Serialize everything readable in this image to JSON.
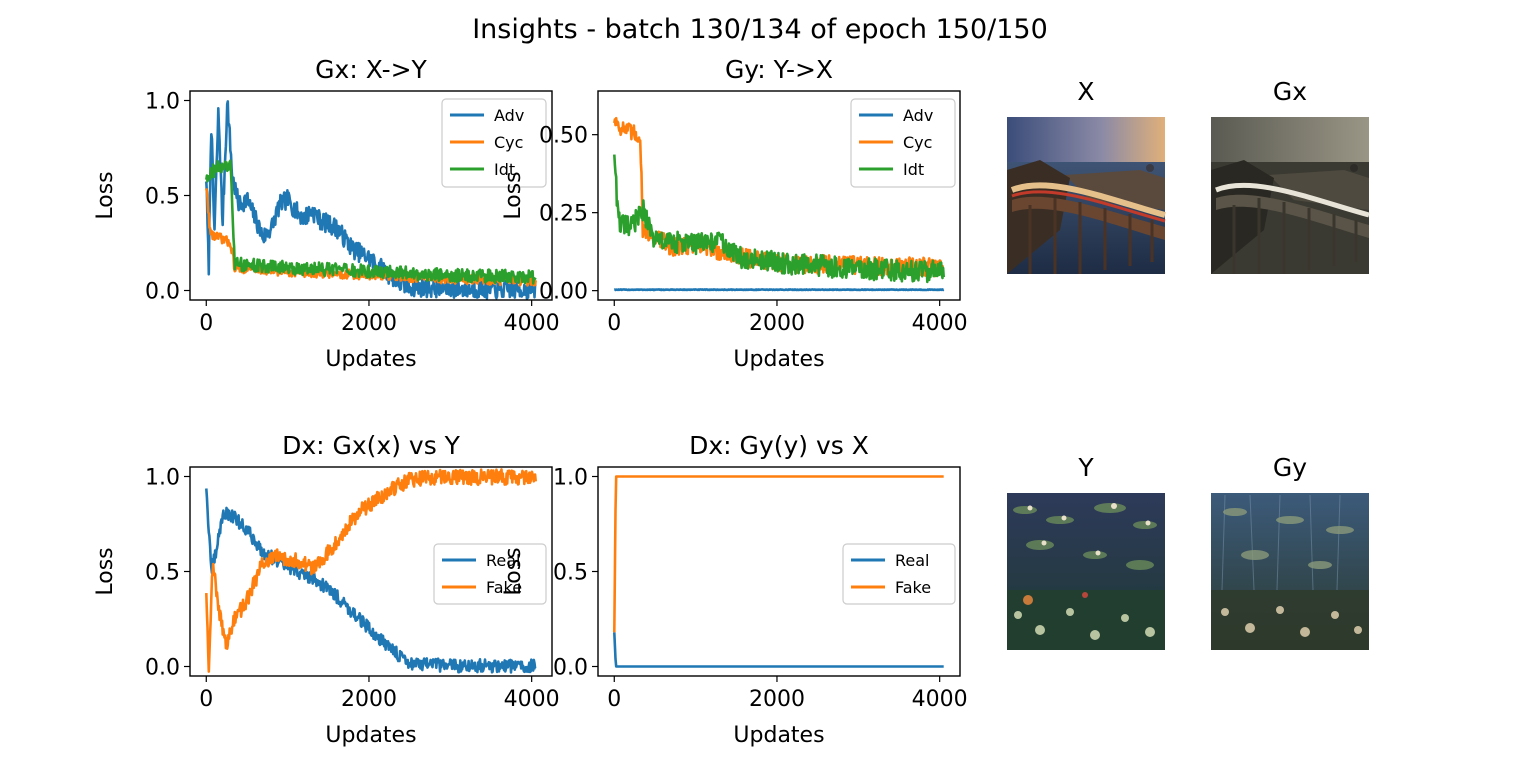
{
  "suptitle": "Insights - batch 130/134 of epoch 150/150",
  "colors": {
    "blue": "#1f77b4",
    "orange": "#ff7f0e",
    "green": "#2ca02c"
  },
  "chart_data": [
    {
      "type": "line",
      "title": "Gx: X->Y",
      "xlabel": "Updates",
      "ylabel": "Loss",
      "xlim": [
        -200,
        4250
      ],
      "ylim": [
        -0.05,
        1.05
      ],
      "xticks": [
        "0",
        "2000",
        "4000"
      ],
      "yticks": [
        "0.0",
        "0.5",
        "1.0"
      ],
      "legend_position": "upper right",
      "series": [
        {
          "name": "Adv",
          "color": "#1f77b4",
          "shape": [
            [
              0,
              0.6
            ],
            [
              30,
              0.1
            ],
            [
              60,
              0.9
            ],
            [
              100,
              0.3
            ],
            [
              150,
              0.95
            ],
            [
              200,
              0.35
            ],
            [
              260,
              1.0
            ],
            [
              320,
              0.6
            ],
            [
              400,
              0.45
            ],
            [
              500,
              0.48
            ],
            [
              600,
              0.38
            ],
            [
              700,
              0.28
            ],
            [
              800,
              0.33
            ],
            [
              900,
              0.45
            ],
            [
              1000,
              0.48
            ],
            [
              1100,
              0.42
            ],
            [
              1200,
              0.38
            ],
            [
              1300,
              0.42
            ],
            [
              1400,
              0.37
            ],
            [
              1600,
              0.33
            ],
            [
              1800,
              0.22
            ],
            [
              2000,
              0.17
            ],
            [
              2200,
              0.1
            ],
            [
              2400,
              0.03
            ],
            [
              2600,
              0.015
            ],
            [
              3000,
              0.01
            ],
            [
              3500,
              0.006
            ],
            [
              4050,
              0.005
            ]
          ],
          "noise": 0.05
        },
        {
          "name": "Cyc",
          "color": "#ff7f0e",
          "shape": [
            [
              0,
              0.55
            ],
            [
              50,
              0.3
            ],
            [
              300,
              0.25
            ],
            [
              350,
              0.12
            ],
            [
              1000,
              0.1
            ],
            [
              2000,
              0.08
            ],
            [
              3000,
              0.06
            ],
            [
              4050,
              0.05
            ]
          ],
          "noise": 0.025
        },
        {
          "name": "Idt",
          "color": "#2ca02c",
          "shape": [
            [
              0,
              0.6
            ],
            [
              150,
              0.65
            ],
            [
              300,
              0.65
            ],
            [
              350,
              0.14
            ],
            [
              1000,
              0.12
            ],
            [
              2000,
              0.1
            ],
            [
              3000,
              0.08
            ],
            [
              4050,
              0.07
            ]
          ],
          "noise": 0.035
        }
      ]
    },
    {
      "type": "line",
      "title": "Gy: Y->X",
      "xlabel": "Updates",
      "ylabel": "Loss",
      "xlim": [
        -200,
        4250
      ],
      "ylim": [
        -0.03,
        0.64
      ],
      "xticks": [
        "0",
        "2000",
        "4000"
      ],
      "yticks": [
        "0.00",
        "0.25",
        "0.50"
      ],
      "legend_position": "upper right",
      "series": [
        {
          "name": "Adv",
          "color": "#1f77b4",
          "shape": [
            [
              0,
              0.003
            ],
            [
              4050,
              0.003
            ]
          ],
          "noise": 0.001
        },
        {
          "name": "Cyc",
          "color": "#ff7f0e",
          "shape": [
            [
              0,
              0.55
            ],
            [
              100,
              0.52
            ],
            [
              250,
              0.5
            ],
            [
              320,
              0.5
            ],
            [
              350,
              0.2
            ],
            [
              700,
              0.14
            ],
            [
              1000,
              0.15
            ],
            [
              1500,
              0.11
            ],
            [
              2000,
              0.09
            ],
            [
              3000,
              0.08
            ],
            [
              4050,
              0.075
            ]
          ],
          "noise": 0.03
        },
        {
          "name": "Idt",
          "color": "#2ca02c",
          "shape": [
            [
              0,
              0.45
            ],
            [
              50,
              0.22
            ],
            [
              200,
              0.2
            ],
            [
              350,
              0.26
            ],
            [
              500,
              0.16
            ],
            [
              1000,
              0.15
            ],
            [
              1300,
              0.16
            ],
            [
              1500,
              0.11
            ],
            [
              2000,
              0.09
            ],
            [
              3000,
              0.07
            ],
            [
              4050,
              0.06
            ]
          ],
          "noise": 0.035
        }
      ]
    },
    {
      "type": "line",
      "title": "Dx: Gx(x) vs Y",
      "xlabel": "Updates",
      "ylabel": "Loss",
      "xlim": [
        -200,
        4250
      ],
      "ylim": [
        -0.05,
        1.05
      ],
      "xticks": [
        "0",
        "2000",
        "4000"
      ],
      "yticks": [
        "0.0",
        "0.5",
        "1.0"
      ],
      "legend_position": "center right",
      "series": [
        {
          "name": "Real",
          "color": "#1f77b4",
          "shape": [
            [
              0,
              0.95
            ],
            [
              60,
              0.5
            ],
            [
              120,
              0.6
            ],
            [
              200,
              0.8
            ],
            [
              300,
              0.8
            ],
            [
              500,
              0.72
            ],
            [
              700,
              0.6
            ],
            [
              900,
              0.55
            ],
            [
              1100,
              0.5
            ],
            [
              1300,
              0.47
            ],
            [
              1500,
              0.41
            ],
            [
              1700,
              0.33
            ],
            [
              1900,
              0.24
            ],
            [
              2100,
              0.16
            ],
            [
              2300,
              0.08
            ],
            [
              2500,
              0.02
            ],
            [
              2700,
              0.008
            ],
            [
              3200,
              0.004
            ],
            [
              4050,
              0.002
            ]
          ],
          "noise": 0.035
        },
        {
          "name": "Fake",
          "color": "#ff7f0e",
          "shape": [
            [
              0,
              0.4
            ],
            [
              30,
              0.0
            ],
            [
              80,
              0.55
            ],
            [
              150,
              0.3
            ],
            [
              250,
              0.12
            ],
            [
              350,
              0.25
            ],
            [
              500,
              0.35
            ],
            [
              700,
              0.55
            ],
            [
              900,
              0.58
            ],
            [
              1100,
              0.56
            ],
            [
              1300,
              0.52
            ],
            [
              1500,
              0.6
            ],
            [
              1700,
              0.72
            ],
            [
              1900,
              0.82
            ],
            [
              2100,
              0.88
            ],
            [
              2300,
              0.94
            ],
            [
              2500,
              0.98
            ],
            [
              2700,
              0.995
            ],
            [
              4050,
              0.998
            ]
          ],
          "noise": 0.04
        }
      ]
    },
    {
      "type": "line",
      "title": "Dx: Gy(y) vs X",
      "xlabel": "Updates",
      "ylabel": "Loss",
      "xlim": [
        -200,
        4250
      ],
      "ylim": [
        -0.05,
        1.05
      ],
      "xticks": [
        "0",
        "2000",
        "4000"
      ],
      "yticks": [
        "0.0",
        "0.5",
        "1.0"
      ],
      "legend_position": "center right",
      "series": [
        {
          "name": "Real",
          "color": "#1f77b4",
          "shape": [
            [
              0,
              0.18
            ],
            [
              20,
              0.0
            ],
            [
              4050,
              0.0
            ]
          ],
          "noise": 0.0
        },
        {
          "name": "Fake",
          "color": "#ff7f0e",
          "shape": [
            [
              0,
              0.18
            ],
            [
              20,
              1.0
            ],
            [
              4050,
              1.0
            ]
          ],
          "noise": 0.0
        }
      ]
    }
  ],
  "images": [
    {
      "title": "X",
      "scene": "coastal-bridge-photo"
    },
    {
      "title": "Gx",
      "scene": "coastal-bridge-stylized"
    },
    {
      "title": "Y",
      "scene": "water-lilies-painting"
    },
    {
      "title": "Gy",
      "scene": "water-lilies-photo"
    }
  ]
}
